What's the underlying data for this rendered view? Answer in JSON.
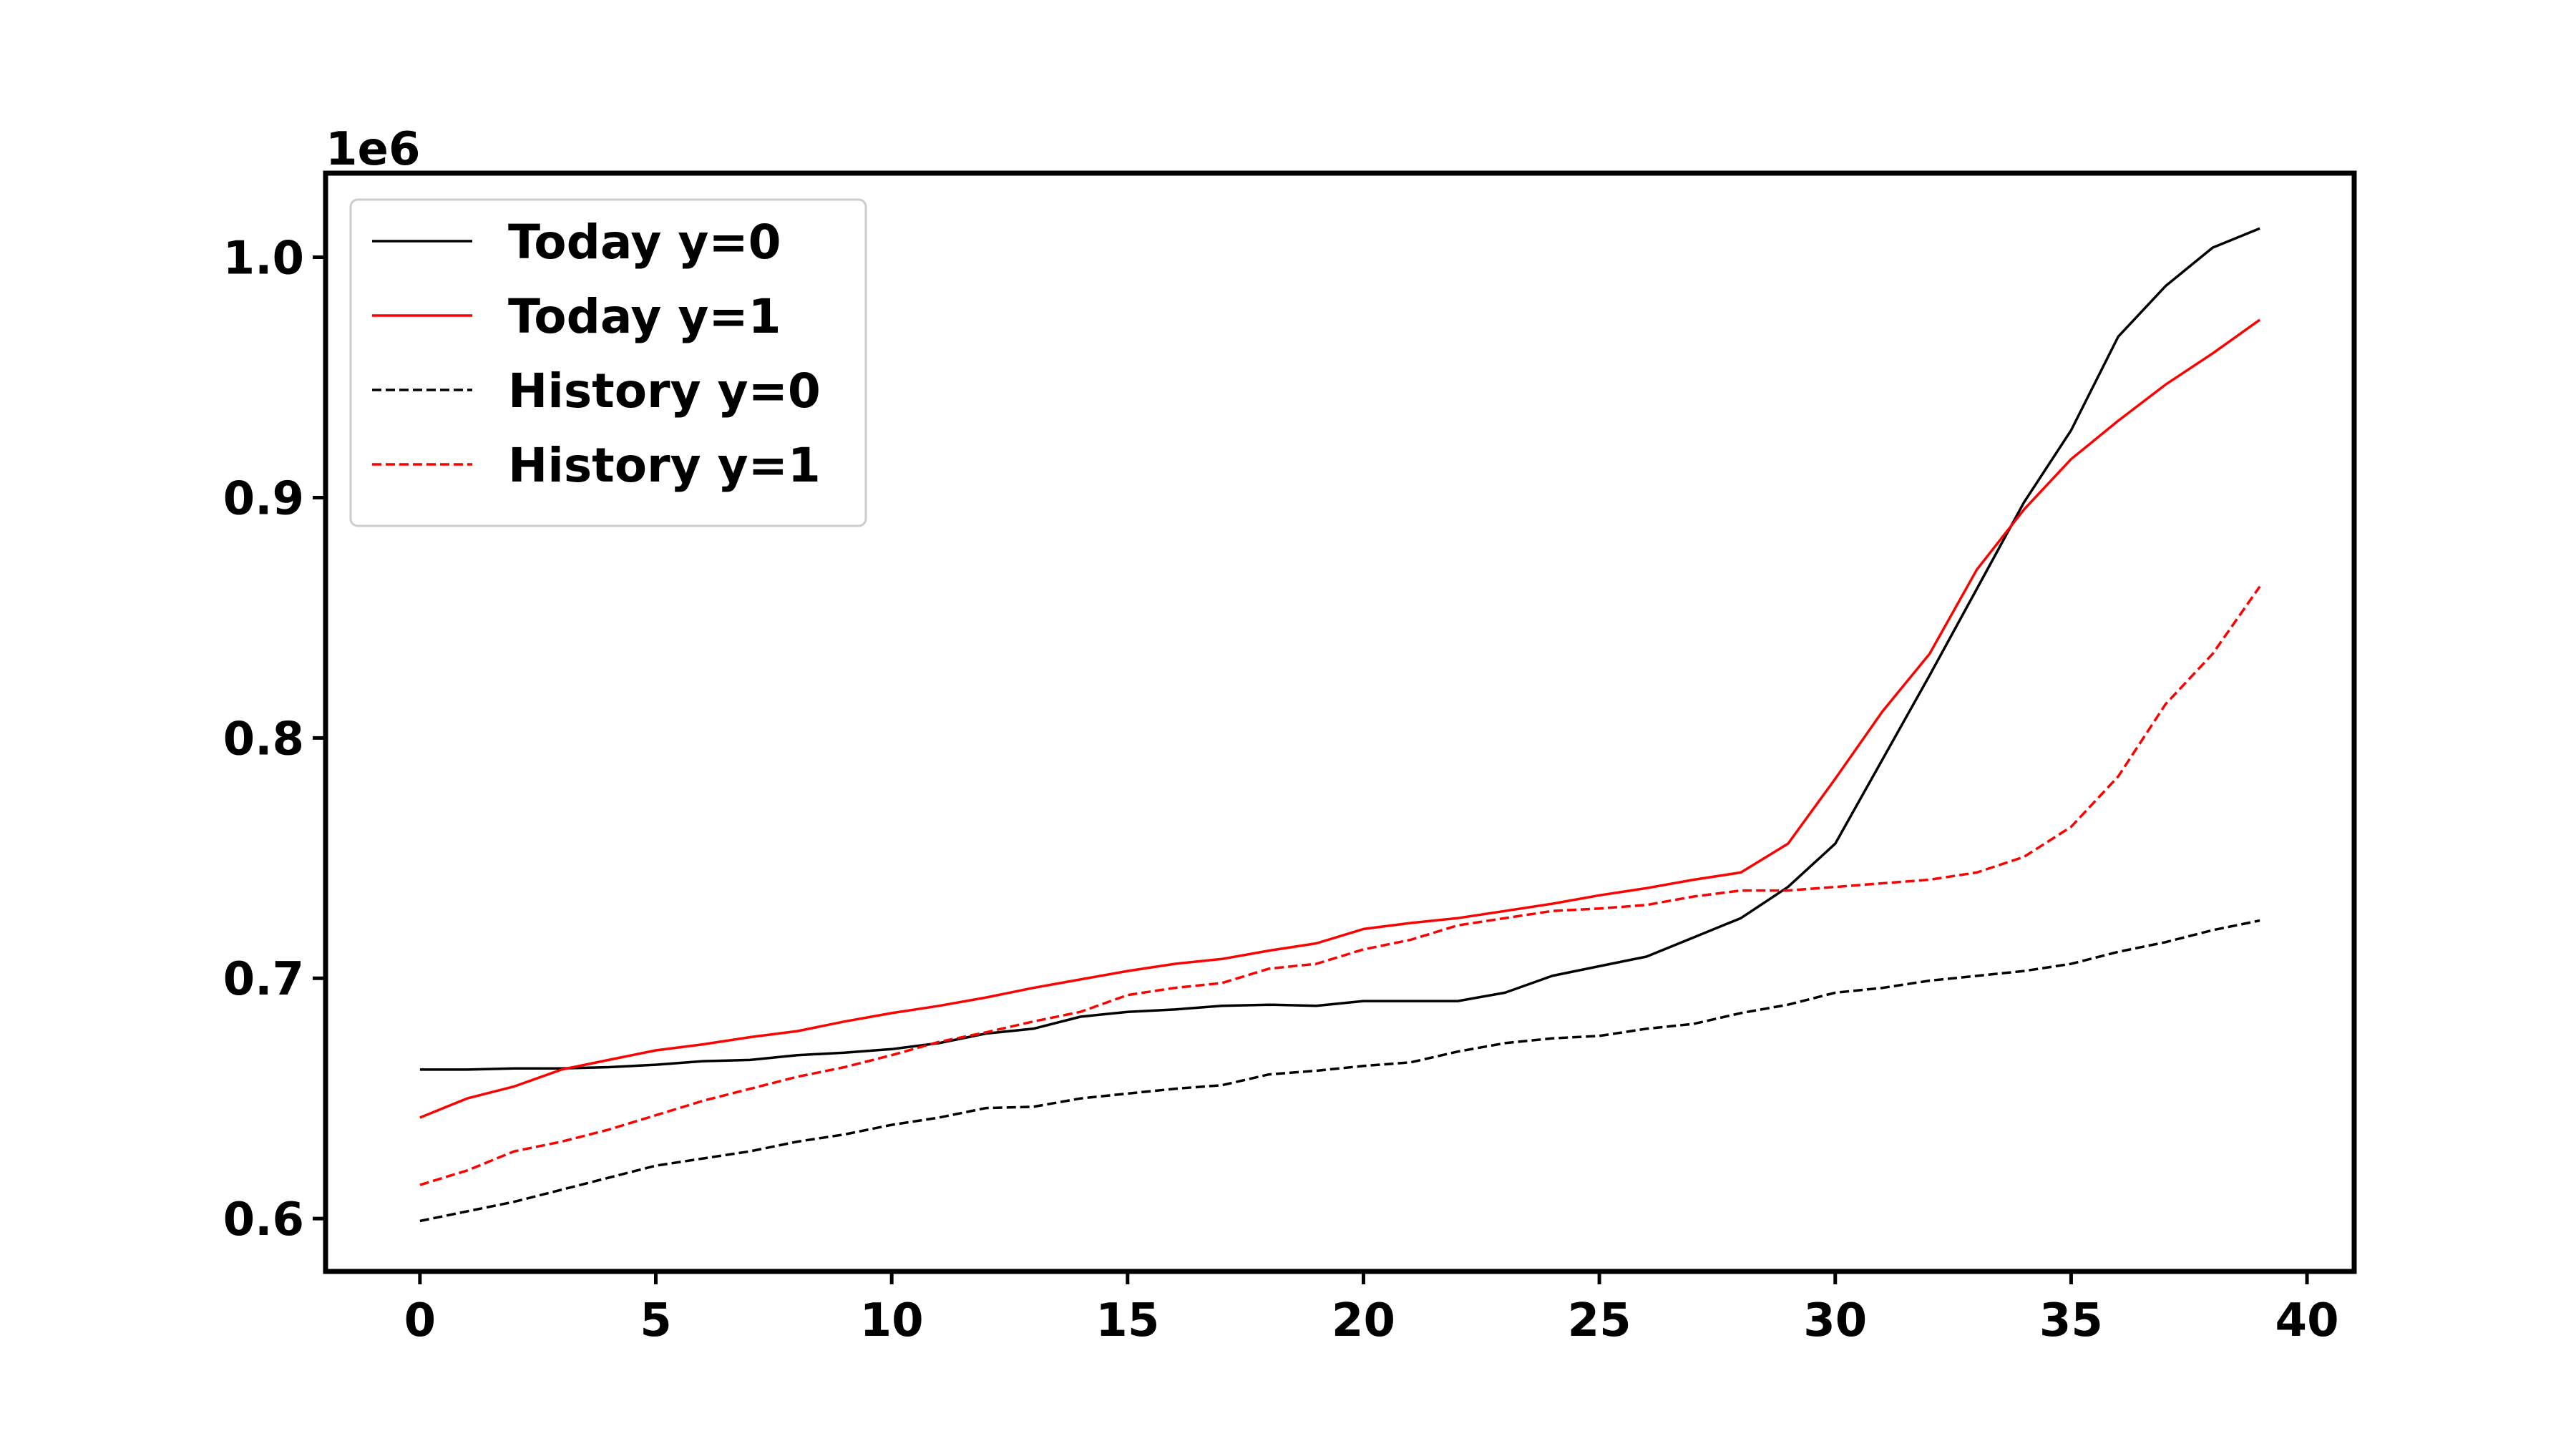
{
  "chart_data": {
    "type": "line",
    "x": [
      0,
      1,
      2,
      3,
      4,
      5,
      6,
      7,
      8,
      9,
      10,
      11,
      12,
      13,
      14,
      15,
      16,
      17,
      18,
      19,
      20,
      21,
      22,
      23,
      24,
      25,
      26,
      27,
      28,
      29,
      30,
      31,
      32,
      33,
      34,
      35,
      36,
      37,
      38,
      39
    ],
    "y_offset_label": "1e6",
    "xlim": [
      -2,
      41
    ],
    "ylim": [
      0.578,
      1.035
    ],
    "xticks": [
      0,
      5,
      10,
      15,
      20,
      25,
      30,
      35,
      40
    ],
    "yticks": [
      0.6,
      0.7,
      0.8,
      0.9,
      1.0
    ],
    "xtick_labels": [
      "0",
      "5",
      "10",
      "15",
      "20",
      "25",
      "30",
      "35",
      "40"
    ],
    "ytick_labels": [
      "0.6",
      "0.7",
      "0.8",
      "0.9",
      "1.0"
    ],
    "legend_position": "upper-left",
    "grid": false,
    "series": [
      {
        "name": "Today y=0",
        "color": "#000000",
        "style": "solid",
        "values": [
          0.662,
          0.662,
          0.6625,
          0.6625,
          0.663,
          0.664,
          0.6655,
          0.666,
          0.668,
          0.669,
          0.6705,
          0.673,
          0.677,
          0.679,
          0.684,
          0.686,
          0.687,
          0.6885,
          0.689,
          0.6885,
          0.6905,
          0.6905,
          0.6905,
          0.694,
          0.701,
          0.705,
          0.709,
          0.717,
          0.725,
          0.738,
          0.756,
          0.791,
          0.826,
          0.862,
          0.898,
          0.928,
          0.967,
          0.988,
          1.004,
          1.012
        ]
      },
      {
        "name": "Today y=1",
        "color": "#ff0000",
        "style": "solid",
        "values": [
          0.642,
          0.65,
          0.655,
          0.662,
          0.666,
          0.67,
          0.6725,
          0.6755,
          0.678,
          0.682,
          0.6855,
          0.6885,
          0.692,
          0.696,
          0.6995,
          0.703,
          0.706,
          0.708,
          0.7115,
          0.7145,
          0.7205,
          0.723,
          0.725,
          0.728,
          0.731,
          0.7345,
          0.7375,
          0.741,
          0.744,
          0.756,
          0.783,
          0.811,
          0.835,
          0.87,
          0.895,
          0.916,
          0.932,
          0.947,
          0.96,
          0.974
        ]
      },
      {
        "name": "History y=0",
        "color": "#000000",
        "style": "dashed",
        "values": [
          0.599,
          0.603,
          0.607,
          0.612,
          0.617,
          0.622,
          0.625,
          0.628,
          0.632,
          0.635,
          0.639,
          0.642,
          0.646,
          0.6465,
          0.65,
          0.652,
          0.654,
          0.6555,
          0.66,
          0.6615,
          0.6635,
          0.665,
          0.6695,
          0.673,
          0.675,
          0.676,
          0.679,
          0.681,
          0.6855,
          0.689,
          0.694,
          0.696,
          0.699,
          0.701,
          0.703,
          0.706,
          0.711,
          0.715,
          0.72,
          0.724
        ]
      },
      {
        "name": "History y=1",
        "color": "#ff0000",
        "style": "dashed",
        "values": [
          0.614,
          0.62,
          0.628,
          0.632,
          0.637,
          0.643,
          0.649,
          0.654,
          0.659,
          0.663,
          0.668,
          0.6735,
          0.6775,
          0.682,
          0.686,
          0.693,
          0.696,
          0.698,
          0.704,
          0.706,
          0.712,
          0.716,
          0.722,
          0.725,
          0.728,
          0.729,
          0.7305,
          0.734,
          0.7365,
          0.7365,
          0.738,
          0.7395,
          0.741,
          0.744,
          0.7505,
          0.763,
          0.784,
          0.814,
          0.835,
          0.863
        ]
      }
    ]
  }
}
